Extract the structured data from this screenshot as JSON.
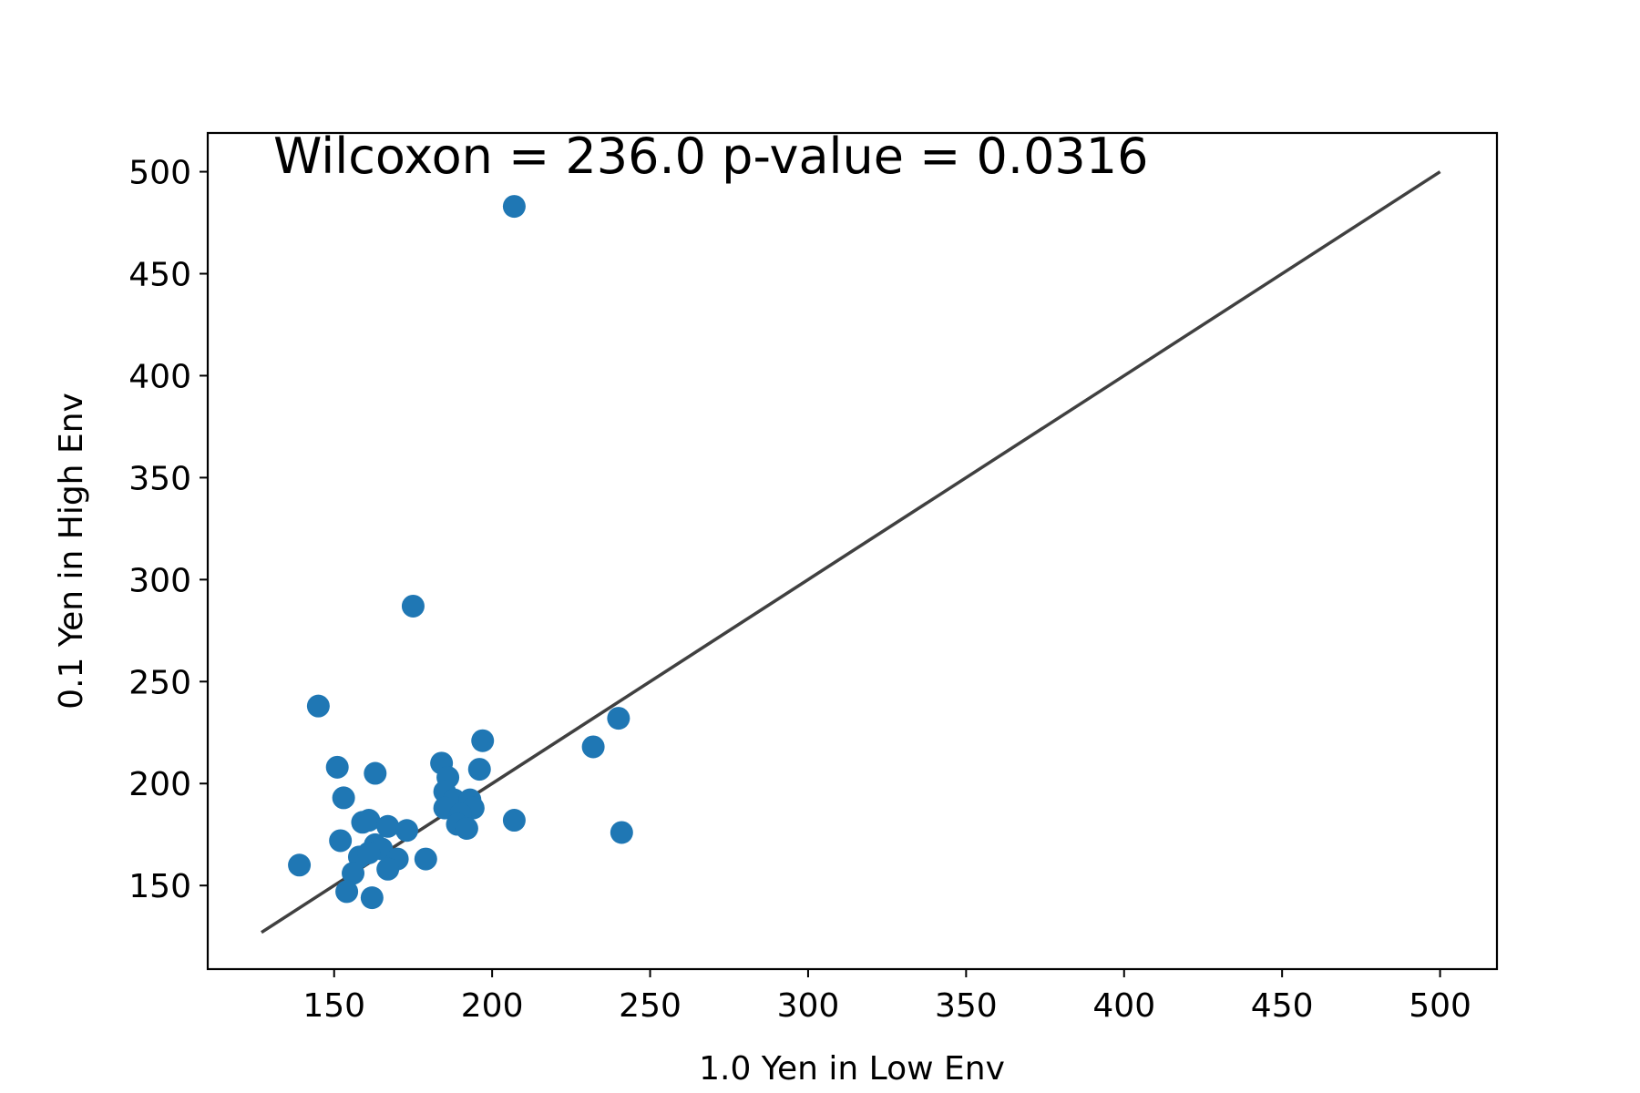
{
  "chart_data": {
    "type": "scatter",
    "title": "",
    "annotation": "Wilcoxon = 236.0  p-value = 0.0316",
    "xlabel": "1.0 Yen in Low Env",
    "ylabel": "0.1 Yen in High Env",
    "xlim": [
      110,
      518
    ],
    "ylim": [
      109,
      519
    ],
    "xticks": [
      150,
      200,
      250,
      300,
      350,
      400,
      450,
      500
    ],
    "yticks": [
      150,
      200,
      250,
      300,
      350,
      400,
      450,
      500
    ],
    "grid": false,
    "legend": "none",
    "point_color": "#1f77b4",
    "line_color": "#404040",
    "reference_line": {
      "x": [
        127,
        500
      ],
      "y": [
        127,
        500
      ]
    },
    "points": [
      [
        207,
        483
      ],
      [
        175,
        287
      ],
      [
        145,
        238
      ],
      [
        240,
        232
      ],
      [
        232,
        218
      ],
      [
        151,
        208
      ],
      [
        163,
        205
      ],
      [
        184,
        210
      ],
      [
        197,
        221
      ],
      [
        196,
        207
      ],
      [
        186,
        203
      ],
      [
        185,
        196
      ],
      [
        188,
        192
      ],
      [
        193,
        192
      ],
      [
        194,
        188
      ],
      [
        185,
        188
      ],
      [
        190,
        185
      ],
      [
        189,
        180
      ],
      [
        192,
        178
      ],
      [
        207,
        182
      ],
      [
        153,
        193
      ],
      [
        159,
        181
      ],
      [
        161,
        182
      ],
      [
        167,
        179
      ],
      [
        173,
        177
      ],
      [
        152,
        172
      ],
      [
        163,
        170
      ],
      [
        165,
        168
      ],
      [
        170,
        163
      ],
      [
        158,
        164
      ],
      [
        161,
        166
      ],
      [
        167,
        158
      ],
      [
        179,
        163
      ],
      [
        156,
        156
      ],
      [
        154,
        147
      ],
      [
        162,
        144
      ],
      [
        139,
        160
      ],
      [
        241,
        176
      ]
    ]
  }
}
